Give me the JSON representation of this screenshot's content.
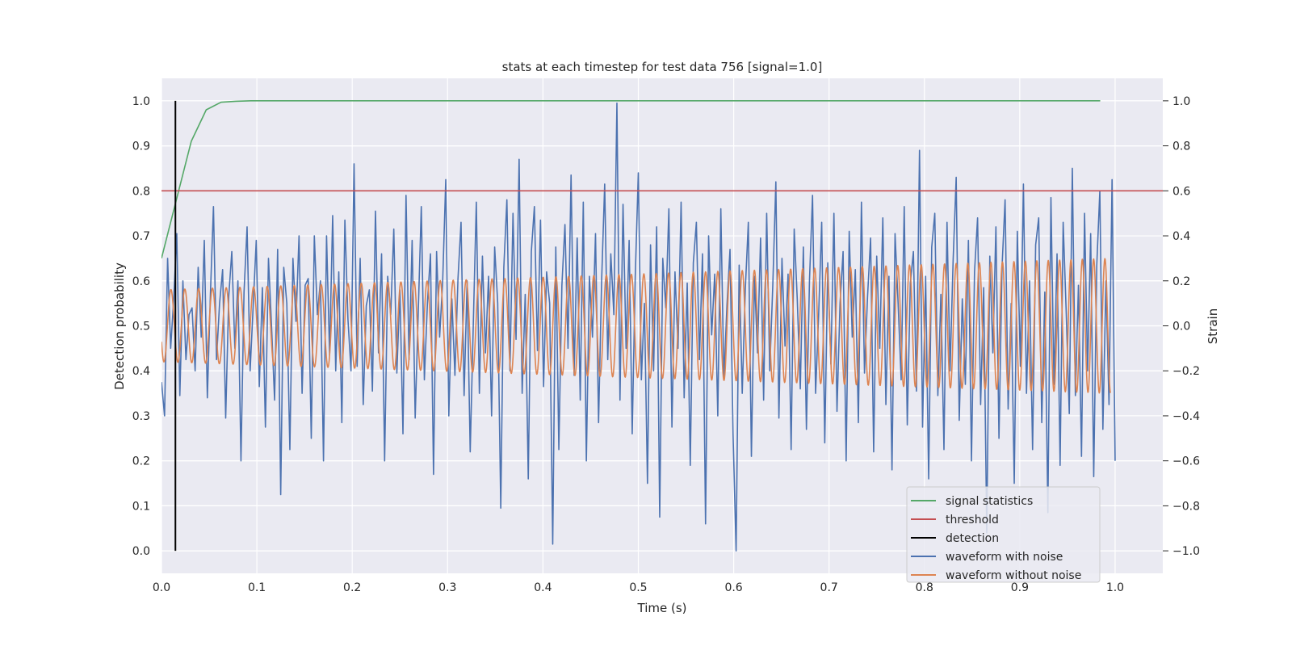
{
  "chart_data": {
    "type": "line",
    "title": "stats at each timestep for test data 756 [signal=1.0]",
    "xlabel": "Time (s)",
    "ylabel": "Detection probability",
    "y2label": "Strain",
    "xlim": [
      0.0,
      1.05
    ],
    "ylim": [
      -0.05,
      1.05
    ],
    "y2lim": [
      -1.1,
      1.1
    ],
    "grid": true,
    "legend_position": "lower-right",
    "xticks": [
      0.0,
      0.1,
      0.2,
      0.3,
      0.4,
      0.5,
      0.6,
      0.7,
      0.8,
      0.9,
      1.0
    ],
    "xtick_labels": [
      "0.0",
      "0.1",
      "0.2",
      "0.3",
      "0.4",
      "0.5",
      "0.6",
      "0.7",
      "0.8",
      "0.9",
      "1.0"
    ],
    "yticks": [
      0.0,
      0.1,
      0.2,
      0.3,
      0.4,
      0.5,
      0.6,
      0.7,
      0.8,
      0.9,
      1.0
    ],
    "ytick_labels": [
      "0.0",
      "0.1",
      "0.2",
      "0.3",
      "0.4",
      "0.5",
      "0.6",
      "0.7",
      "0.8",
      "0.9",
      "1.0"
    ],
    "y2ticks": [
      -1.0,
      -0.8,
      -0.6,
      -0.4,
      -0.2,
      0.0,
      0.2,
      0.4,
      0.6,
      0.8,
      1.0
    ],
    "y2tick_labels": [
      "−1.0",
      "−0.8",
      "−0.6",
      "−0.4",
      "−0.2",
      "0.0",
      "0.2",
      "0.4",
      "0.6",
      "0.8",
      "1.0"
    ],
    "series": [
      {
        "name": "signal statistics",
        "axis": "left",
        "color": "#55a868",
        "x": [
          0.0,
          0.0156,
          0.0312,
          0.0469,
          0.0625,
          0.0781,
          0.0938,
          0.1094,
          0.2,
          0.4,
          0.6,
          0.8,
          0.9844
        ],
        "y": [
          0.65,
          0.78,
          0.91,
          0.98,
          0.997,
          0.999,
          1.0,
          1.0,
          1.0,
          1.0,
          1.0,
          1.0,
          1.0
        ]
      },
      {
        "name": "threshold",
        "axis": "left",
        "color": "#c44e52",
        "x": [
          0.0,
          1.05
        ],
        "y": [
          0.8,
          0.8
        ]
      },
      {
        "name": "detection",
        "axis": "left",
        "color": "#000000",
        "x": [
          0.0146,
          0.0146
        ],
        "y": [
          0.0,
          1.0
        ]
      },
      {
        "name": "waveform with noise",
        "axis": "right",
        "color": "#4c72b0",
        "x_start": 0.0,
        "x_end": 1.0,
        "y": [
          -0.25,
          -0.4,
          0.3,
          -0.1,
          0.12,
          0.41,
          -0.31,
          0.2,
          -0.15,
          0.05,
          0.08,
          -0.2,
          0.26,
          -0.05,
          0.38,
          -0.32,
          0.14,
          0.53,
          -0.15,
          0.1,
          0.25,
          -0.41,
          0.13,
          0.33,
          -0.1,
          0.2,
          -0.6,
          0.15,
          0.44,
          -0.2,
          0.09,
          0.38,
          -0.27,
          0.17,
          -0.45,
          0.3,
          0.0,
          -0.33,
          0.34,
          -0.75,
          0.26,
          0.1,
          -0.55,
          0.3,
          0.02,
          0.4,
          -0.3,
          0.18,
          0.21,
          -0.5,
          0.4,
          0.05,
          0.2,
          -0.6,
          0.4,
          -0.13,
          0.49,
          -0.2,
          0.24,
          -0.43,
          0.47,
          0.03,
          -0.2,
          0.72,
          -0.18,
          0.3,
          -0.35,
          0.09,
          0.16,
          -0.29,
          0.51,
          -0.12,
          0.32,
          -0.6,
          0.22,
          0.05,
          0.43,
          -0.21,
          0.16,
          -0.48,
          0.58,
          -0.15,
          0.38,
          -0.41,
          0.06,
          0.53,
          -0.24,
          0.1,
          0.32,
          -0.66,
          0.33,
          -0.05,
          0.2,
          0.65,
          -0.4,
          0.12,
          -0.22,
          0.21,
          0.46,
          -0.31,
          0.2,
          -0.56,
          0.0,
          0.55,
          -0.3,
          0.31,
          -0.12,
          0.22,
          -0.4,
          0.35,
          0.1,
          -0.81,
          0.26,
          0.56,
          -0.2,
          0.5,
          -0.06,
          0.74,
          -0.3,
          0.14,
          -0.68,
          0.33,
          0.53,
          -0.11,
          0.47,
          -0.27,
          0.24,
          0.1,
          -0.97,
          0.35,
          -0.55,
          0.18,
          0.45,
          -0.1,
          0.67,
          -0.22,
          0.39,
          -0.33,
          0.55,
          -0.6,
          0.22,
          -0.05,
          0.41,
          -0.43,
          0.2,
          0.63,
          -0.15,
          0.32,
          0.05,
          0.99,
          -0.33,
          0.54,
          -0.1,
          0.38,
          -0.48,
          0.22,
          0.68,
          -0.24,
          0.1,
          -0.7,
          0.36,
          -0.2,
          0.44,
          -0.85,
          0.3,
          0.08,
          0.52,
          -0.45,
          0.24,
          -0.1,
          0.55,
          -0.32,
          0.19,
          -0.62,
          0.28,
          0.46,
          -0.15,
          0.32,
          -0.88,
          0.4,
          -0.04,
          0.23,
          -0.4,
          0.52,
          -0.24,
          0.09,
          0.34,
          -0.48,
          -1.0,
          0.27,
          -0.3,
          0.16,
          0.46,
          -0.58,
          0.22,
          -0.12,
          0.39,
          -0.33,
          0.5,
          -0.2,
          0.18,
          0.64,
          -0.41,
          0.3,
          -0.09,
          0.23,
          -0.55,
          0.43,
          0.12,
          -0.28,
          0.35,
          -0.46,
          0.2,
          0.58,
          -0.3,
          0.05,
          0.46,
          -0.52,
          0.28,
          -0.17,
          0.5,
          -0.38,
          0.1,
          0.33,
          -0.6,
          0.42,
          -0.05,
          0.25,
          -0.43,
          0.55,
          -0.21,
          0.13,
          0.39,
          -0.56,
          0.31,
          -0.1,
          0.48,
          -0.35,
          0.22,
          -0.64,
          0.41,
          0.1,
          -0.24,
          0.53,
          -0.44,
          0.19,
          0.33,
          -0.29,
          0.78,
          -0.45,
          0.22,
          -0.68,
          0.35,
          0.5,
          -0.31,
          0.14,
          -0.55,
          0.46,
          -0.2,
          0.29,
          0.66,
          -0.42,
          0.12,
          -0.26,
          0.38,
          -0.6,
          0.24,
          0.48,
          -0.35,
          0.17,
          -0.92,
          0.31,
          -0.12,
          0.44,
          -0.5,
          0.26,
          0.56,
          -0.37,
          0.1,
          -0.7,
          0.42,
          -0.18,
          0.63,
          -0.3,
          0.2,
          -0.55,
          0.36,
          0.48,
          -0.43,
          0.15,
          -0.83,
          0.57,
          -0.26,
          0.32,
          -0.62,
          0.46,
          0.06,
          -0.39,
          0.7,
          -0.31,
          0.18,
          -0.58,
          0.5,
          -0.2,
          0.41,
          -0.67,
          0.27,
          0.6,
          -0.46,
          0.2,
          -0.35,
          0.65,
          -0.6
        ]
      },
      {
        "name": "waveform without noise",
        "axis": "right",
        "color": "#dd8452",
        "x_start": 0.0,
        "x_end": 0.995,
        "amplitude_start": 0.16,
        "amplitude_end": 0.3,
        "cycles": 68
      }
    ]
  }
}
